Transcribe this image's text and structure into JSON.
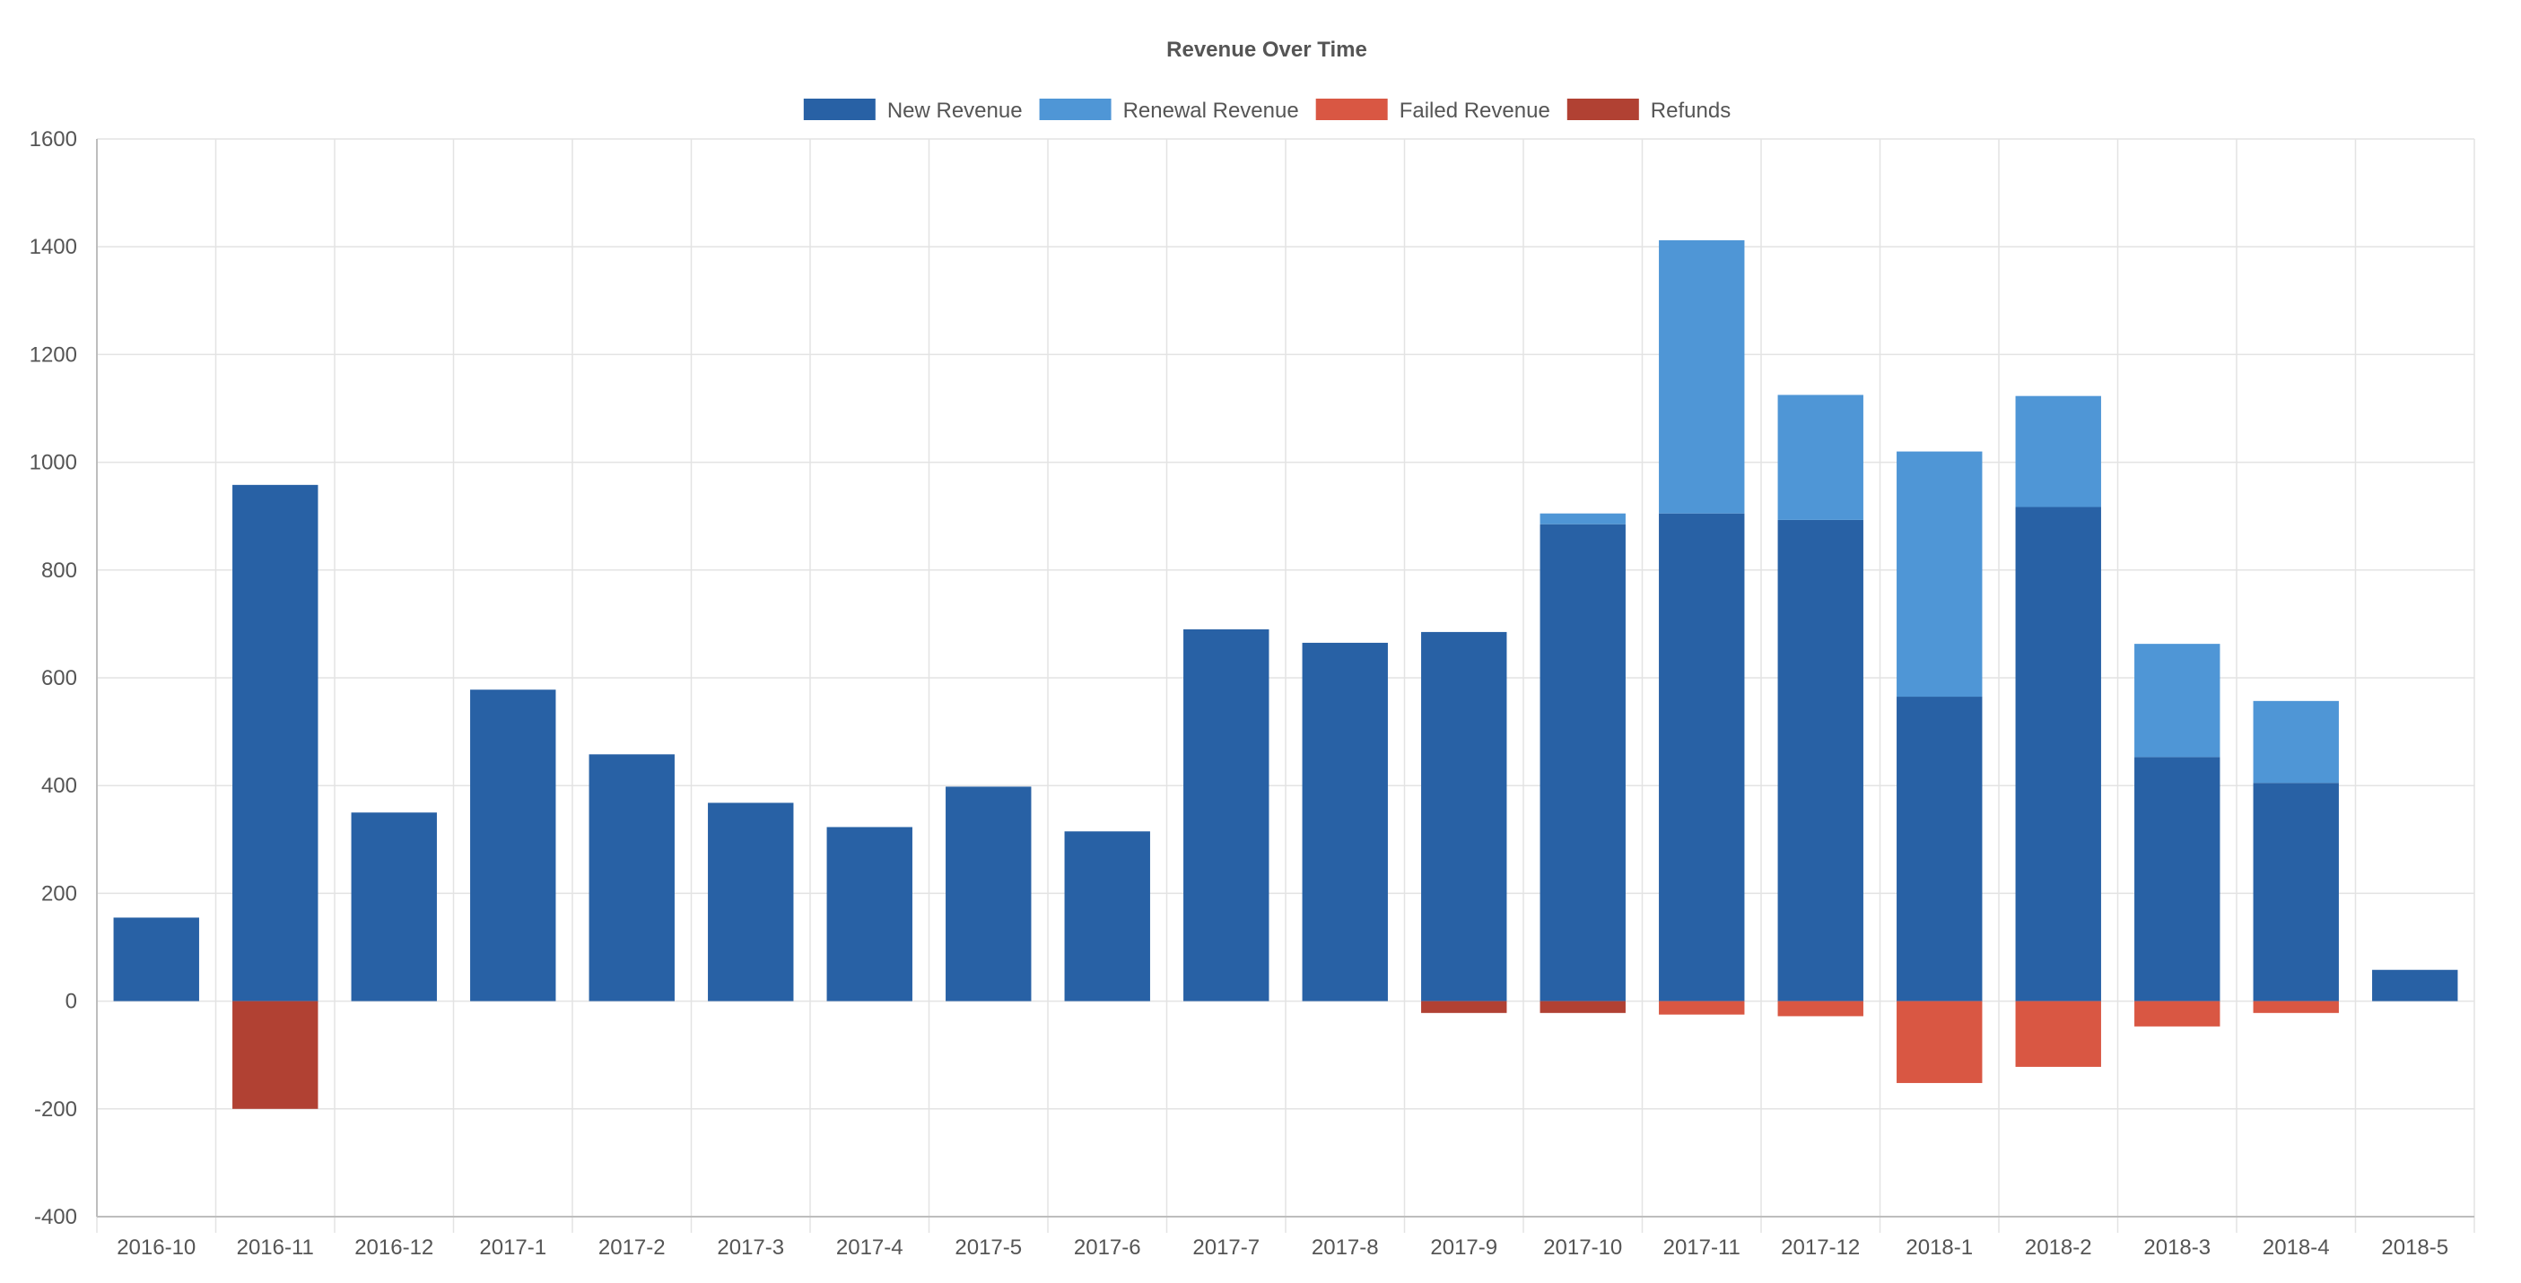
{
  "chart_data": {
    "type": "bar",
    "stacked": true,
    "title": "Revenue Over Time",
    "xlabel": "",
    "ylabel": "",
    "ylim": [
      -400,
      1600
    ],
    "yticks": [
      -400,
      -200,
      0,
      200,
      400,
      600,
      800,
      1000,
      1200,
      1400,
      1600
    ],
    "grid": true,
    "legend_position": "top-center",
    "categories": [
      "2016-10",
      "2016-11",
      "2016-12",
      "2017-1",
      "2017-2",
      "2017-3",
      "2017-4",
      "2017-5",
      "2017-6",
      "2017-7",
      "2017-8",
      "2017-9",
      "2017-10",
      "2017-11",
      "2017-12",
      "2018-1",
      "2018-2",
      "2018-3",
      "2018-4",
      "2018-5"
    ],
    "series": [
      {
        "name": "New Revenue",
        "color": "#2861a5",
        "values": [
          155,
          958,
          350,
          578,
          458,
          368,
          323,
          398,
          315,
          690,
          665,
          685,
          885,
          905,
          893,
          565,
          917,
          453,
          405,
          58
        ]
      },
      {
        "name": "Renewal Revenue",
        "color": "#4f96d6",
        "values": [
          0,
          0,
          0,
          0,
          0,
          0,
          0,
          0,
          0,
          0,
          0,
          0,
          20,
          507,
          232,
          455,
          206,
          210,
          152,
          0
        ]
      },
      {
        "name": "Failed Revenue",
        "color": "#d95743",
        "values": [
          0,
          0,
          0,
          0,
          0,
          0,
          0,
          0,
          0,
          0,
          0,
          0,
          0,
          -25,
          -28,
          -152,
          -122,
          -47,
          -22,
          0
        ]
      },
      {
        "name": "Refunds",
        "color": "#b14133",
        "values": [
          0,
          -200,
          0,
          0,
          0,
          0,
          0,
          0,
          0,
          0,
          0,
          -22,
          -22,
          0,
          0,
          0,
          0,
          0,
          0,
          0
        ]
      }
    ]
  }
}
